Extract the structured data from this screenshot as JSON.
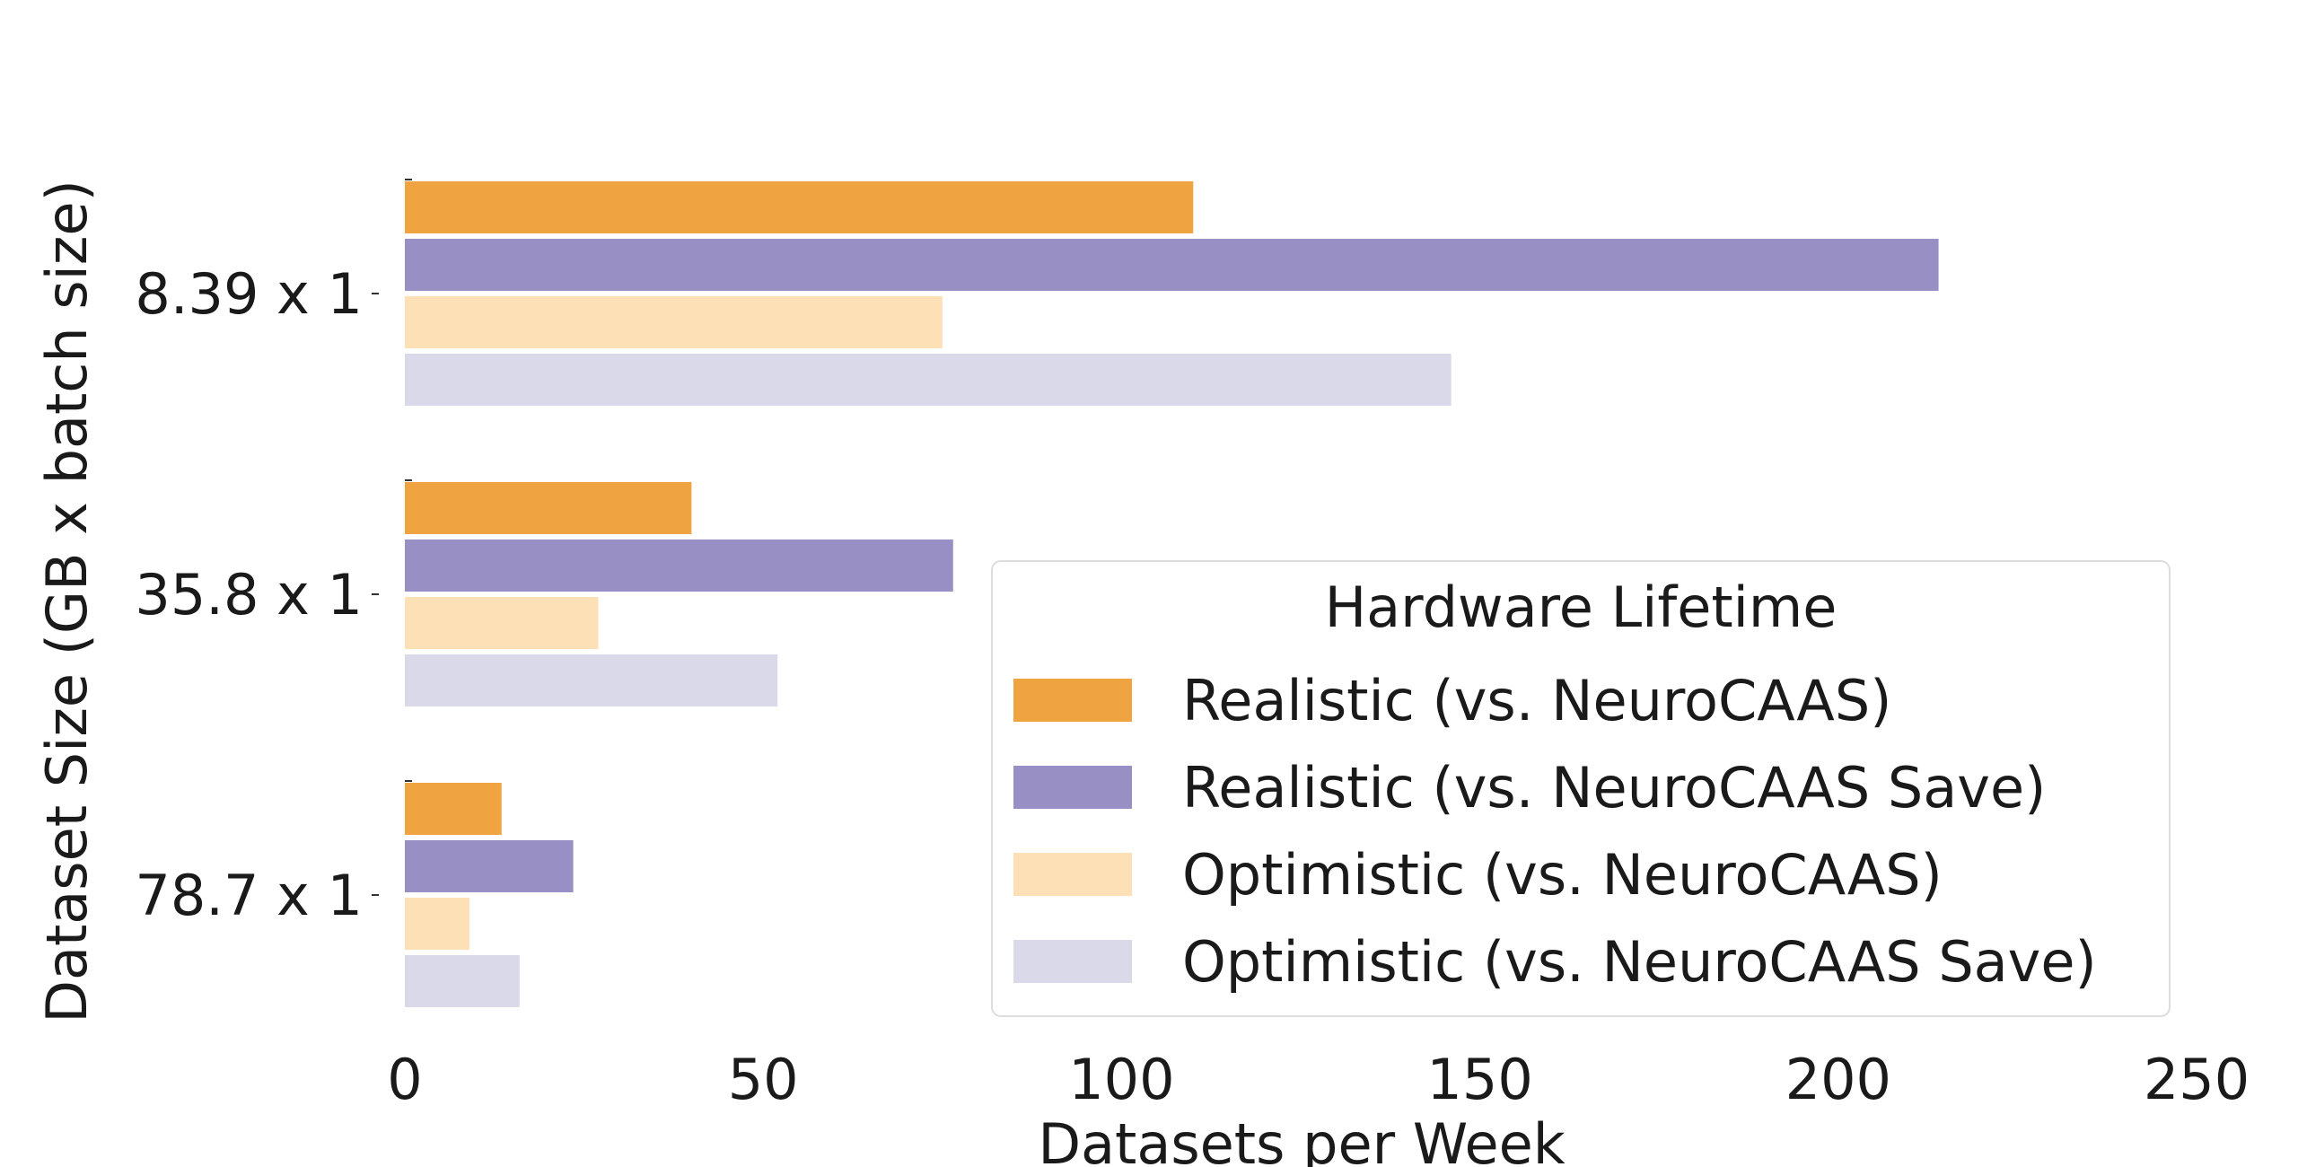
{
  "chart_data": {
    "type": "bar",
    "orientation": "horizontal",
    "categories": [
      "8.39 x 1",
      "35.8 x 1",
      "78.7 x 1"
    ],
    "series": [
      {
        "name": "Realistic (vs. NeuroCAAS)",
        "color": "#f0a341",
        "values": [
          110,
          40,
          13.5
        ]
      },
      {
        "name": "Realistic (vs. NeuroCAAS Save)",
        "color": "#988fc5",
        "values": [
          214,
          76.5,
          23.5
        ]
      },
      {
        "name": "Optimistic (vs. NeuroCAAS)",
        "color": "#fde0b5",
        "values": [
          75,
          27,
          9
        ]
      },
      {
        "name": "Optimistic (vs. NeuroCAAS Save)",
        "color": "#d9d9ea",
        "values": [
          146,
          52,
          16
        ]
      }
    ],
    "xlabel": "Datasets per Week",
    "ylabel": "Dataset Size (GB x batch size)",
    "xlim": [
      0,
      250
    ],
    "xticks": [
      0,
      50,
      100,
      150,
      200,
      250
    ],
    "grid": false,
    "legend": {
      "title": "Hardware Lifetime",
      "placement": "lower-right"
    }
  }
}
